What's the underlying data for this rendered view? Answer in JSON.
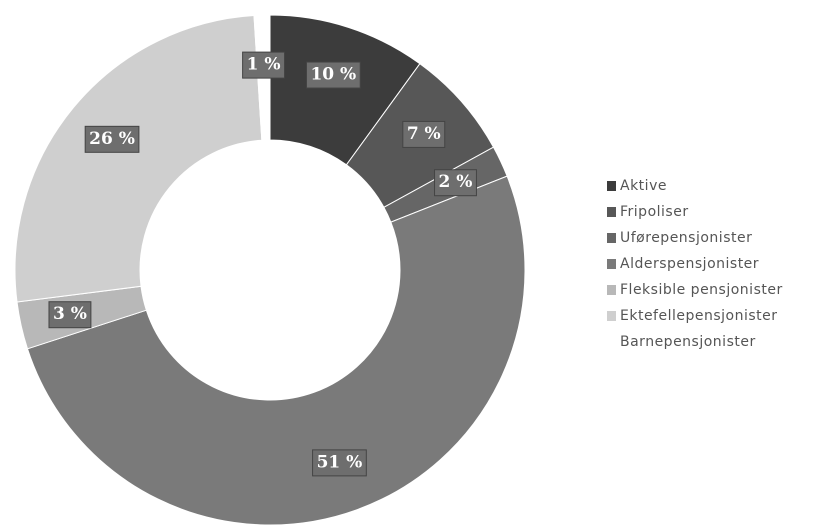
{
  "chart_data": {
    "type": "donut",
    "categories": [
      "Aktive",
      "Fripoliser",
      "Uførepensjonister",
      "Alderspensjonister",
      "Fleksible pensjonister",
      "Ektefellepensjonister",
      "Barnepensjonister"
    ],
    "values": [
      10,
      7,
      2,
      51,
      3,
      26,
      1
    ],
    "value_labels": [
      "10 %",
      "7 %",
      "2 %",
      "51 %",
      "3 %",
      "26 %",
      "1 %"
    ],
    "colors": [
      "#3c3c3c",
      "#575757",
      "#666666",
      "#7a7a7a",
      "#b8b8b8",
      "#cfcfcf",
      "#ffffff"
    ],
    "legend": "right"
  }
}
